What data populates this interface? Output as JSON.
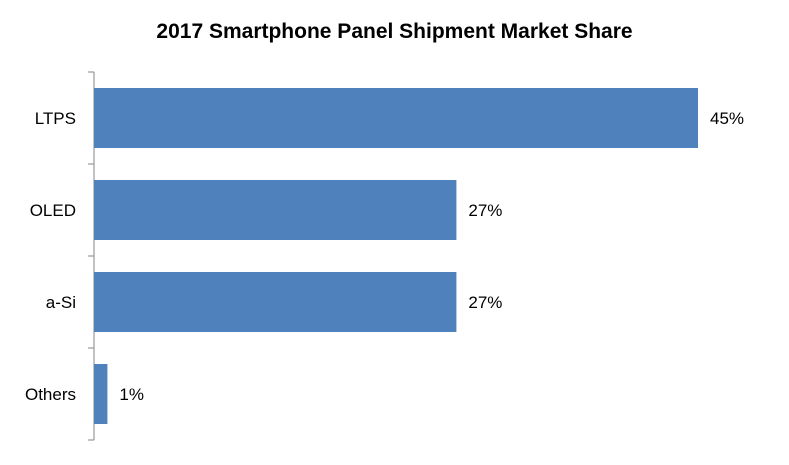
{
  "chart_data": {
    "type": "bar",
    "orientation": "horizontal",
    "title": "2017 Smartphone Panel Shipment Market Share",
    "categories": [
      "LTPS",
      "OLED",
      "a-Si",
      "Others"
    ],
    "values": [
      45,
      27,
      27,
      1
    ],
    "data_labels": [
      "45%",
      "27%",
      "27%",
      "1%"
    ],
    "xlabel": "",
    "ylabel": "",
    "xlim": [
      0,
      45
    ],
    "grid": false,
    "legend": "none",
    "colors": {
      "bar": "#4F81BD",
      "axis": "#868686"
    }
  }
}
